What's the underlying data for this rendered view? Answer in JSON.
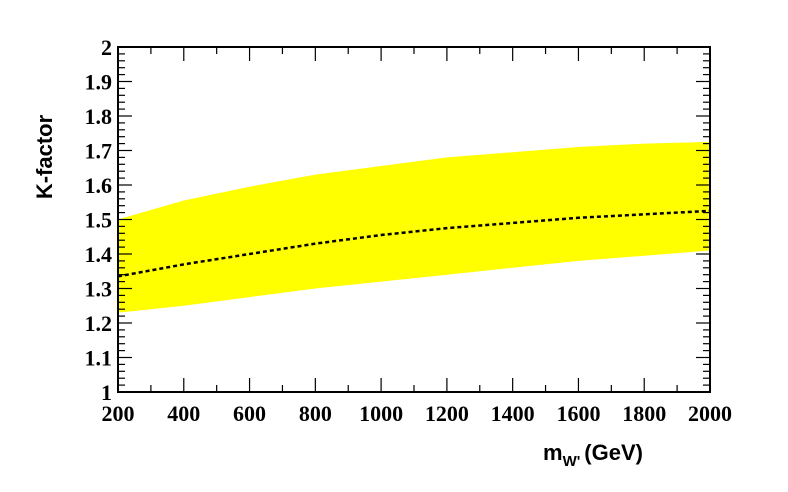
{
  "chart_data": {
    "type": "area",
    "title": "",
    "xlabel": "m",
    "xlabel_subscript": "W'",
    "xlabel_unit": "(GeV)",
    "ylabel": "K-factor",
    "xlim": [
      200,
      2000
    ],
    "ylim": [
      1,
      2
    ],
    "xticks": [
      200,
      400,
      600,
      800,
      1000,
      1200,
      1400,
      1600,
      1800,
      2000
    ],
    "yticks": [
      1,
      1.1,
      1.2,
      1.3,
      1.4,
      1.5,
      1.6,
      1.7,
      1.8,
      1.9,
      2
    ],
    "grid": false,
    "x": [
      200,
      400,
      600,
      800,
      1000,
      1200,
      1400,
      1600,
      1800,
      2000
    ],
    "series": [
      {
        "role": "central",
        "style": "dashed",
        "color": "#000000",
        "values": [
          1.335,
          1.37,
          1.4,
          1.43,
          1.455,
          1.475,
          1.49,
          1.505,
          1.515,
          1.525
        ]
      },
      {
        "role": "band_lower",
        "color": "#ffff00",
        "values": [
          1.23,
          1.25,
          1.275,
          1.3,
          1.32,
          1.34,
          1.36,
          1.38,
          1.395,
          1.41
        ]
      },
      {
        "role": "band_upper",
        "color": "#ffff00",
        "values": [
          1.5,
          1.555,
          1.595,
          1.63,
          1.655,
          1.68,
          1.695,
          1.71,
          1.72,
          1.725
        ]
      }
    ]
  }
}
